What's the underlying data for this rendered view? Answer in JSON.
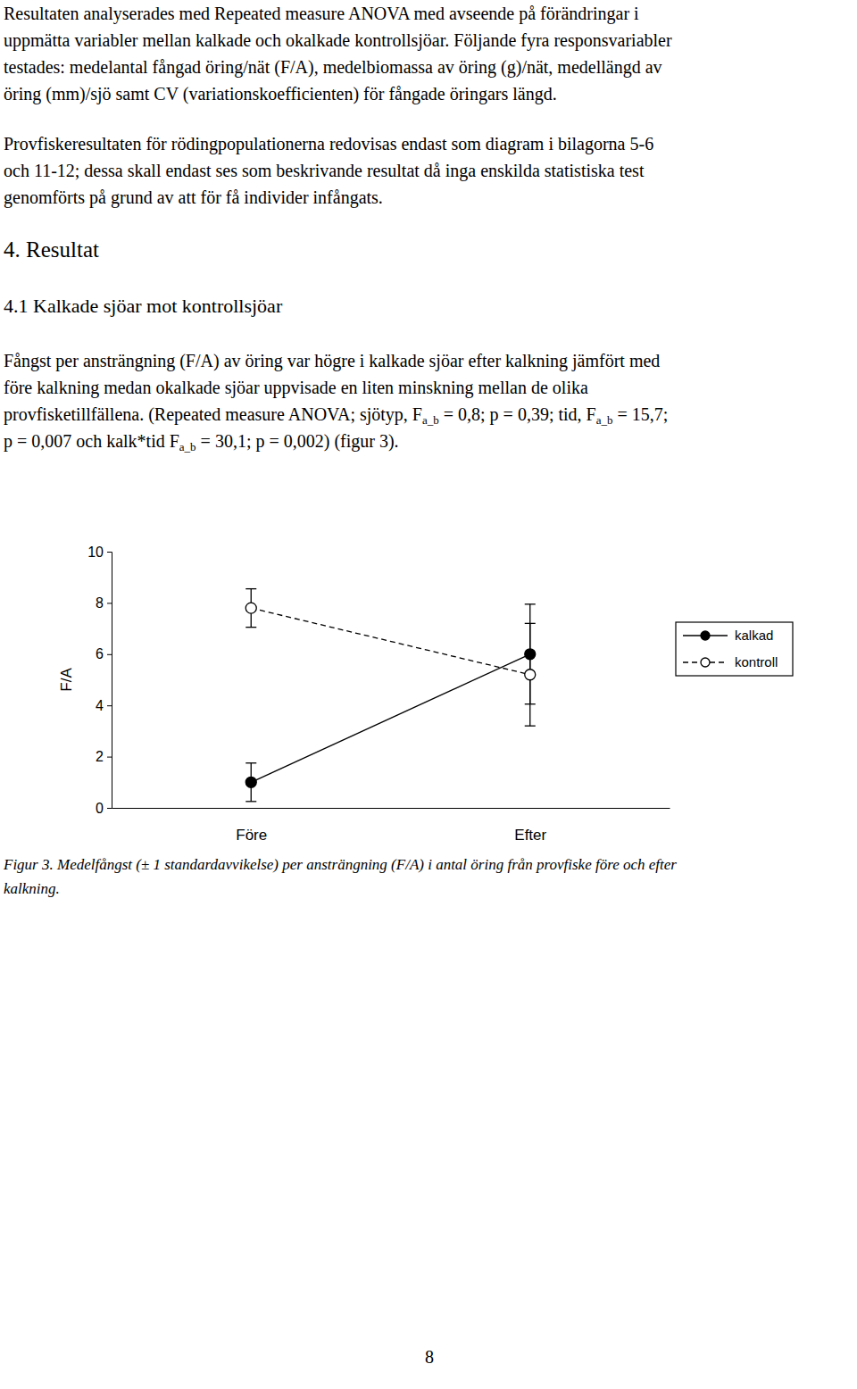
{
  "text_before": [
    [
      "Resultaten analyserades med Repeated measure ANOVA med avseende på förändringar i",
      "uppmätta variabler mellan kalkade och okalkade kontrollsjöar. Följande fyra responsvariabler",
      "testades: medelantal fångad öring/nät (F/A), medelbiomassa av öring (g)/nät, medellängd av",
      "öring (mm)/sjö samt CV (variationskoefficienten) för fångade öringars längd."
    ],
    [
      "Provfiskeresultaten för rödingpopulationerna redovisas endast som diagram i bilagorna 5-6",
      "och 11-12; dessa skall endast ses som beskrivande resultat då inga enskilda statistiska test",
      "genomförts på grund av att för få individer infångats."
    ]
  ],
  "heading": "4.  Resultat",
  "subheading": "4.1 Kalkade sjöar mot kontrollsjöar",
  "results": [
    "Fångst per ansträngning (F/A) av öring var högre i kalkade sjöar efter kalkning jämfört med",
    "före kalkning medan okalkade sjöar uppvisade en liten minskning mellan de olika",
    [
      "provfisketillfällena. (Repeated measure ANOVA; sjötyp, F",
      {
        "sub": "a_b"
      },
      " = 0,8; p = 0,39; tid, F",
      {
        "sub": "a_b"
      },
      " = 15,7;"
    ],
    [
      "p = 0,007 och kalk*tid F",
      {
        "sub": "a_b"
      },
      " = 30,1; p = 0,002) (figur 3)."
    ]
  ],
  "chart_data": {
    "type": "line",
    "y_label": "F/A",
    "categories": [
      "Före",
      "Efter"
    ],
    "series": [
      {
        "name": "kalkad",
        "color": "#000000",
        "marker": "filled",
        "line_style": "solid",
        "values": [
          1.0,
          6.0
        ],
        "errors": [
          0.75,
          1.95
        ]
      },
      {
        "name": "kontroll",
        "color": "#000000",
        "marker": "open",
        "line_style": "dashed",
        "values": [
          7.8,
          5.2
        ],
        "errors": [
          0.75,
          2.0
        ]
      }
    ],
    "ylim": [
      0,
      10
    ],
    "yticks": [
      0,
      2,
      4,
      6,
      8,
      10
    ],
    "legend": "right"
  },
  "caption": [
    "Figur 3. Medelfångst (± 1 standardavvikelse) per ansträngning (F/A) i antal öring från provfiske före och efter",
    "kalkning."
  ],
  "page_number": "8"
}
